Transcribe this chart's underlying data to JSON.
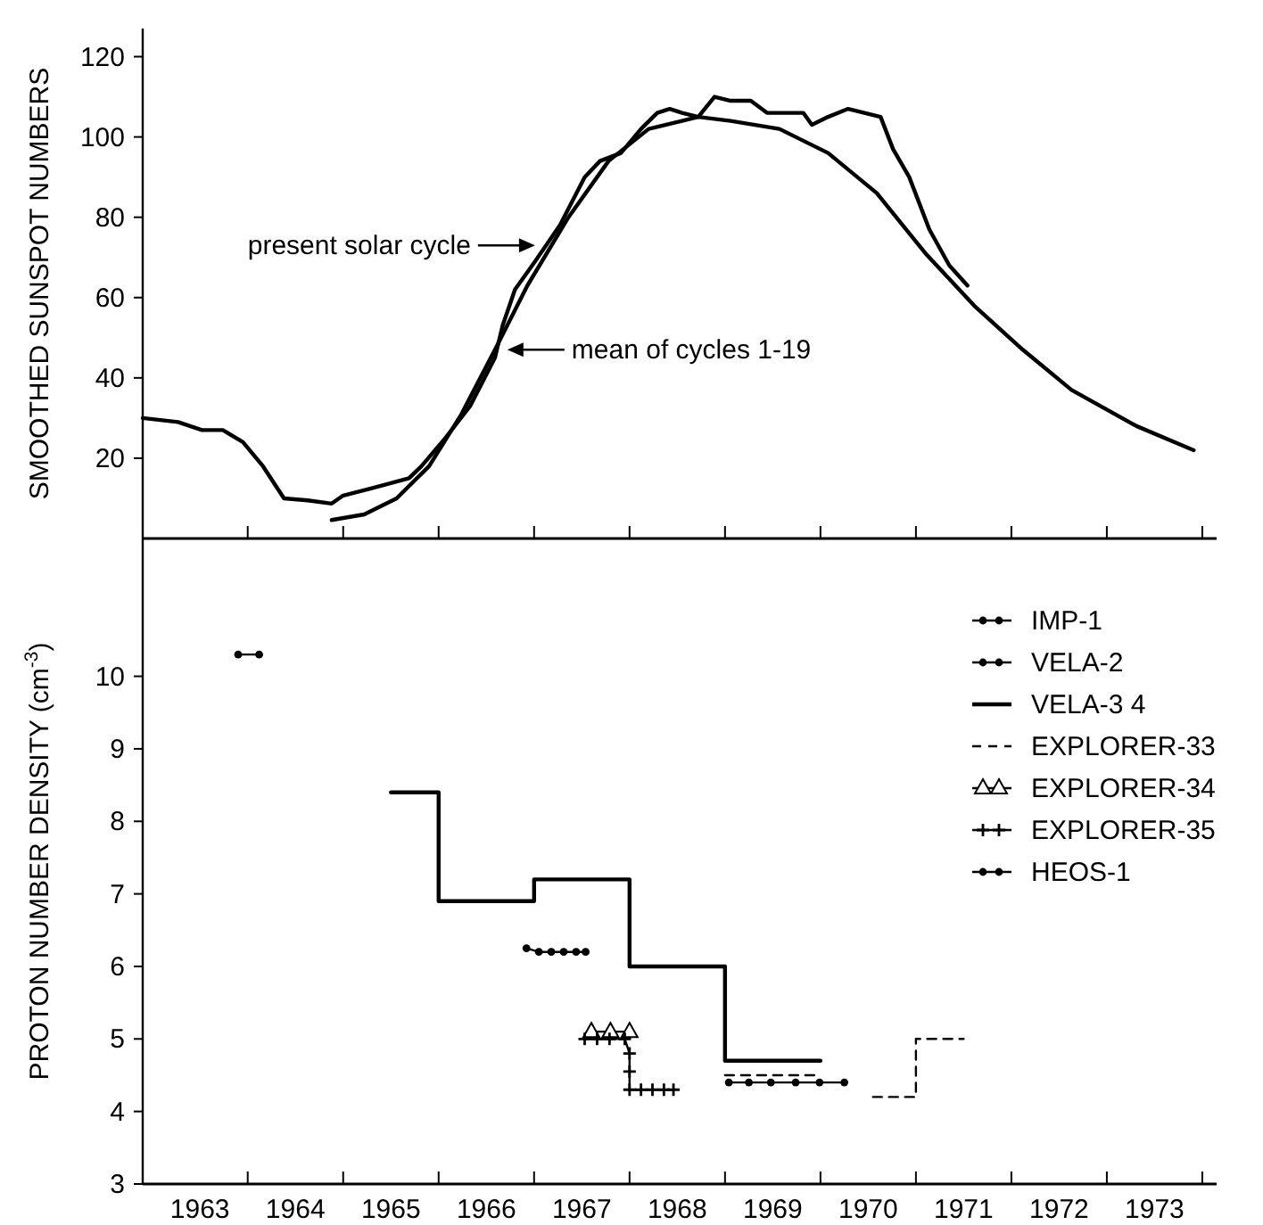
{
  "chart_data": [
    {
      "type": "line",
      "ylabel": "SMOOTHED SUNSPOT NUMBERS",
      "xlim": [
        1962.9,
        1974.15
      ],
      "ylim": [
        0,
        127
      ],
      "xticks": [
        {
          "value": 1964,
          "label": null
        },
        {
          "value": 1965,
          "label": null
        },
        {
          "value": 1966,
          "label": null
        },
        {
          "value": 1967,
          "label": null
        },
        {
          "value": 1968,
          "label": null
        },
        {
          "value": 1969,
          "label": null
        },
        {
          "value": 1970,
          "label": null
        },
        {
          "value": 1971,
          "label": null
        },
        {
          "value": 1972,
          "label": null
        },
        {
          "value": 1973,
          "label": null
        },
        {
          "value": 1974,
          "label": null
        }
      ],
      "yticks": [
        20,
        40,
        60,
        80,
        100,
        120
      ],
      "tick_labels": "y",
      "legend": false,
      "series": [
        {
          "color": "#000000",
          "x": [
            1962.9,
            1963.27,
            1963.52,
            1963.74,
            1963.95,
            1964.16,
            1964.38,
            1964.63,
            1964.88,
            1965.0,
            1965.3,
            1965.69,
            1965.82,
            1966.07,
            1966.33,
            1966.59,
            1966.67,
            1966.8,
            1967.01,
            1967.27,
            1967.53,
            1967.69,
            1967.91,
            1968.12,
            1968.29,
            1968.42,
            1968.55,
            1968.72,
            1968.89,
            1969.06,
            1969.27,
            1969.44,
            1969.82,
            1969.91,
            1970.08,
            1970.29,
            1970.46,
            1970.63,
            1970.76,
            1970.93,
            1971.14,
            1971.35,
            1971.54
          ],
          "values": [
            30,
            29,
            27,
            27,
            24,
            18,
            10,
            9.5,
            8.7,
            10.7,
            12.5,
            15,
            18,
            25,
            33,
            45,
            53,
            62,
            69,
            78,
            90,
            94,
            96,
            102,
            106,
            107,
            106,
            105,
            110,
            109,
            109,
            106,
            106,
            103,
            105,
            107,
            106,
            105,
            97,
            90,
            77,
            68,
            63
          ]
        },
        {
          "color": "#000000",
          "x": [
            1964.88,
            1965.22,
            1965.56,
            1965.9,
            1966.24,
            1966.59,
            1966.93,
            1967.36,
            1967.78,
            1968.2,
            1968.72,
            1969.06,
            1969.57,
            1970.08,
            1970.59,
            1971.1,
            1971.61,
            1972.12,
            1972.63,
            1973.31,
            1973.91
          ],
          "values": [
            4.6,
            6,
            10,
            18,
            31,
            47,
            63,
            80,
            94,
            102,
            105,
            104,
            102,
            96,
            86,
            71,
            58,
            47,
            37,
            28,
            22
          ]
        }
      ],
      "annotations": [
        {
          "text": "present solar cycle",
          "x": 1967.01,
          "y": 73
        },
        {
          "text": "mean of cycles 1-19",
          "x": 1966.72,
          "y": 47
        }
      ]
    },
    {
      "type": "line",
      "ylabel": "PROTON NUMBER DENSITY (cm$^{-3}$)",
      "xlim": [
        1962.9,
        1974.15
      ],
      "ylim": [
        3,
        11.9
      ],
      "xticks": [
        {
          "value": 1963.5,
          "label": "1963"
        },
        {
          "value": 1964.5,
          "label": "1964"
        },
        {
          "value": 1965.5,
          "label": "1965"
        },
        {
          "value": 1966.5,
          "label": "1966"
        },
        {
          "value": 1967.5,
          "label": "1967"
        },
        {
          "value": 1968.5,
          "label": "1968"
        },
        {
          "value": 1969.5,
          "label": "1969"
        },
        {
          "value": 1970.5,
          "label": "1970"
        },
        {
          "value": 1971.5,
          "label": "1971"
        },
        {
          "value": 1972.5,
          "label": "1972"
        },
        {
          "value": 1973.5,
          "label": "1973"
        },
        {
          "value": 1964,
          "label": null
        },
        {
          "value": 1965,
          "label": null
        },
        {
          "value": 1966,
          "label": null
        },
        {
          "value": 1967,
          "label": null
        },
        {
          "value": 1968,
          "label": null
        },
        {
          "value": 1969,
          "label": null
        },
        {
          "value": 1970,
          "label": null
        },
        {
          "value": 1971,
          "label": null
        },
        {
          "value": 1972,
          "label": null
        },
        {
          "value": 1973,
          "label": null
        },
        {
          "value": 1974,
          "label": null
        }
      ],
      "yticks": [
        3,
        4,
        5,
        6,
        7,
        8,
        9,
        10
      ],
      "legend": "top right",
      "series": [
        {
          "name": "IMP-1",
          "color": "#000000",
          "marker": "circle",
          "x": [
            1966.92,
            1967.05,
            1967.18,
            1967.31,
            1967.44,
            1967.54
          ],
          "values": [
            6.25,
            6.2,
            6.2,
            6.2,
            6.2,
            6.2
          ]
        },
        {
          "name": "VELA-2",
          "color": "#000000",
          "marker": "circle",
          "x": [
            1963.9,
            1964.12
          ],
          "values": [
            10.3,
            10.3
          ]
        },
        {
          "type": "step",
          "name": "VELA-3 4",
          "color": "#000000",
          "x": [
            1965.5,
            1966,
            1967,
            1968,
            1969,
            1970
          ],
          "values": [
            8.4,
            6.9,
            7.2,
            6.0,
            4.7,
            4.7
          ]
        },
        {
          "type": "step",
          "name": "EXPLORER-33",
          "color": "#000000",
          "line_style": "dashed",
          "x": [
            1969,
            1970,
            null,
            1970.55,
            1971,
            1971.5
          ],
          "values": [
            4.5,
            4.5,
            null,
            4.2,
            5.0,
            5.0
          ]
        },
        {
          "name": "EXPLORER-34",
          "color": "#000000",
          "marker": "triangle",
          "x": [
            1967.6,
            1967.8,
            1968.0
          ],
          "values": [
            5.1,
            5.1,
            5.1
          ]
        },
        {
          "name": "EXPLORER-35",
          "color": "#000000",
          "marker": "cross",
          "x": [
            1967.53,
            1967.66,
            1967.79,
            1967.95,
            1968.0,
            1968.0,
            1968.0,
            1968.12,
            1968.24,
            1968.36,
            1968.46
          ],
          "values": [
            5.0,
            5.0,
            5.0,
            5.0,
            4.8,
            4.55,
            4.3,
            4.3,
            4.3,
            4.3,
            4.3
          ]
        },
        {
          "name": "HEOS-1",
          "color": "#000000",
          "marker": "circle",
          "x": [
            1969.04,
            1969.25,
            1969.48,
            1969.74,
            1969.99,
            1970.25
          ],
          "values": [
            4.4,
            4.4,
            4.4,
            4.4,
            4.4,
            4.4
          ]
        }
      ]
    }
  ]
}
